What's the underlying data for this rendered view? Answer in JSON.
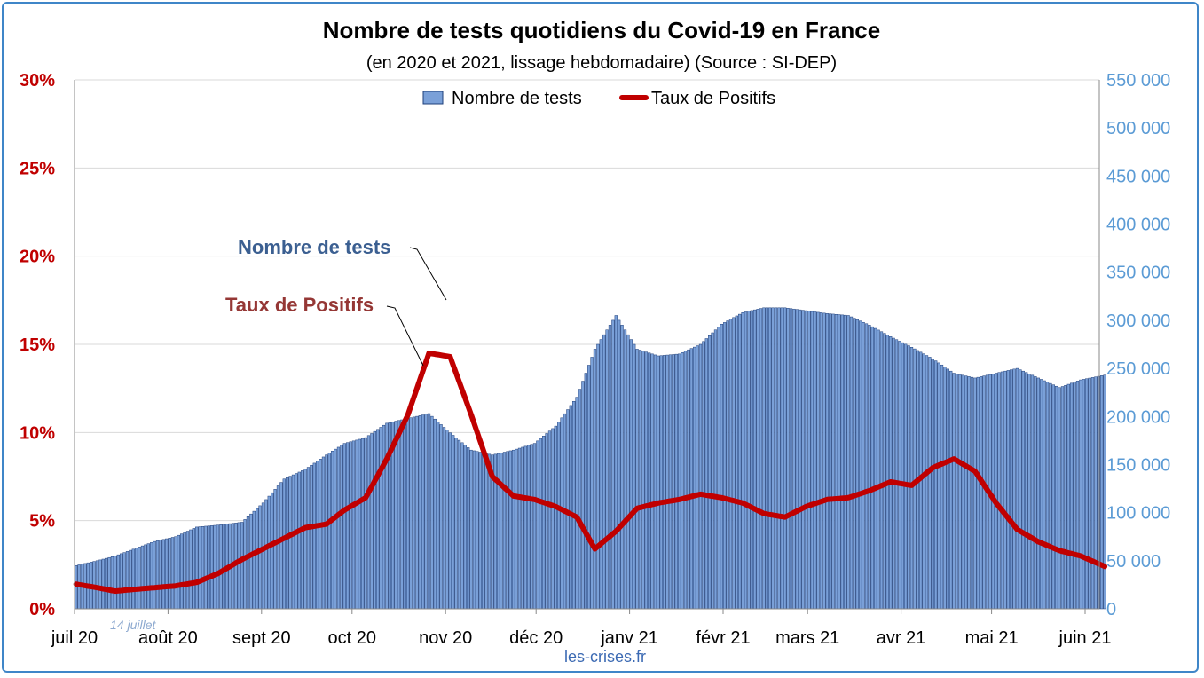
{
  "chart_data": {
    "type": "bar",
    "title": "Nombre de tests quotidiens du Covid-19 en France",
    "subtitle": "(en 2020 et 2021, lissage hebdomadaire) (Source : SI-DEP)",
    "source": "les-crises.fr",
    "annotation_date": "14 juillet",
    "legend_placement": "top-center",
    "grid": true,
    "x_tick_labels": [
      "juil 20",
      "août 20",
      "sept 20",
      "oct 20",
      "nov 20",
      "déc 20",
      "janv 21",
      "févr 21",
      "mars 21",
      "avr 21",
      "mai 21",
      "juin 21"
    ],
    "x_range": [
      "2020-07-01",
      "2021-06-07"
    ],
    "y_left": {
      "ylim": [
        0,
        30
      ],
      "tick_labels": [
        "0%",
        "5%",
        "10%",
        "15%",
        "20%",
        "25%",
        "30%"
      ],
      "color": "#c00000"
    },
    "y_right": {
      "ylim": [
        0,
        550000
      ],
      "tick_labels": [
        "0",
        "50 000",
        "100 000",
        "150 000",
        "200 000",
        "250 000",
        "300 000",
        "350 000",
        "400 000",
        "450 000",
        "500 000",
        "550 000"
      ],
      "color": "#5b9bd5"
    },
    "series": [
      {
        "name": "Nombre de tests",
        "kind": "bar",
        "axis": "right",
        "color": "#7aa0d8",
        "label": "Nombre de tests",
        "points": [
          [
            "2020-07-01",
            45000
          ],
          [
            "2020-07-08",
            50000
          ],
          [
            "2020-07-14",
            55000
          ],
          [
            "2020-07-20",
            62000
          ],
          [
            "2020-07-27",
            70000
          ],
          [
            "2020-08-03",
            75000
          ],
          [
            "2020-08-10",
            85000
          ],
          [
            "2020-08-17",
            87000
          ],
          [
            "2020-08-25",
            90000
          ],
          [
            "2020-09-01",
            110000
          ],
          [
            "2020-09-08",
            135000
          ],
          [
            "2020-09-15",
            145000
          ],
          [
            "2020-09-22",
            160000
          ],
          [
            "2020-09-28",
            172000
          ],
          [
            "2020-10-05",
            178000
          ],
          [
            "2020-10-12",
            193000
          ],
          [
            "2020-10-19",
            198000
          ],
          [
            "2020-10-26",
            203000
          ],
          [
            "2020-11-02",
            183000
          ],
          [
            "2020-11-09",
            165000
          ],
          [
            "2020-11-16",
            160000
          ],
          [
            "2020-11-23",
            165000
          ],
          [
            "2020-11-30",
            172000
          ],
          [
            "2020-12-07",
            190000
          ],
          [
            "2020-12-14",
            220000
          ],
          [
            "2020-12-20",
            270000
          ],
          [
            "2020-12-27",
            305000
          ],
          [
            "2021-01-03",
            270000
          ],
          [
            "2021-01-10",
            263000
          ],
          [
            "2021-01-17",
            265000
          ],
          [
            "2021-01-24",
            275000
          ],
          [
            "2021-01-31",
            296000
          ],
          [
            "2021-02-07",
            308000
          ],
          [
            "2021-02-14",
            313000
          ],
          [
            "2021-02-21",
            313000
          ],
          [
            "2021-02-28",
            310000
          ],
          [
            "2021-03-07",
            307000
          ],
          [
            "2021-03-14",
            305000
          ],
          [
            "2021-03-21",
            295000
          ],
          [
            "2021-03-28",
            283000
          ],
          [
            "2021-04-04",
            272000
          ],
          [
            "2021-04-11",
            260000
          ],
          [
            "2021-04-18",
            245000
          ],
          [
            "2021-04-25",
            240000
          ],
          [
            "2021-05-02",
            245000
          ],
          [
            "2021-05-09",
            250000
          ],
          [
            "2021-05-16",
            240000
          ],
          [
            "2021-05-23",
            230000
          ],
          [
            "2021-05-30",
            238000
          ],
          [
            "2021-06-07",
            243000
          ]
        ]
      },
      {
        "name": "Taux de Positifs",
        "kind": "line",
        "axis": "left",
        "color": "#c00000",
        "label": "Taux de Positifs",
        "points": [
          [
            "2020-07-01",
            1.4
          ],
          [
            "2020-07-08",
            1.2
          ],
          [
            "2020-07-14",
            1.0
          ],
          [
            "2020-07-20",
            1.1
          ],
          [
            "2020-07-27",
            1.2
          ],
          [
            "2020-08-03",
            1.3
          ],
          [
            "2020-08-10",
            1.5
          ],
          [
            "2020-08-17",
            2.0
          ],
          [
            "2020-08-25",
            2.8
          ],
          [
            "2020-09-01",
            3.4
          ],
          [
            "2020-09-08",
            4.0
          ],
          [
            "2020-09-15",
            4.6
          ],
          [
            "2020-09-22",
            4.8
          ],
          [
            "2020-09-28",
            5.6
          ],
          [
            "2020-10-05",
            6.3
          ],
          [
            "2020-10-12",
            8.5
          ],
          [
            "2020-10-19",
            11.0
          ],
          [
            "2020-10-26",
            14.5
          ],
          [
            "2020-11-02",
            14.3
          ],
          [
            "2020-11-09",
            11.0
          ],
          [
            "2020-11-16",
            7.5
          ],
          [
            "2020-11-23",
            6.4
          ],
          [
            "2020-11-30",
            6.2
          ],
          [
            "2020-12-07",
            5.8
          ],
          [
            "2020-12-14",
            5.2
          ],
          [
            "2020-12-20",
            3.4
          ],
          [
            "2020-12-27",
            4.4
          ],
          [
            "2021-01-03",
            5.7
          ],
          [
            "2021-01-10",
            6.0
          ],
          [
            "2021-01-17",
            6.2
          ],
          [
            "2021-01-24",
            6.5
          ],
          [
            "2021-01-31",
            6.3
          ],
          [
            "2021-02-07",
            6.0
          ],
          [
            "2021-02-14",
            5.4
          ],
          [
            "2021-02-21",
            5.2
          ],
          [
            "2021-02-28",
            5.8
          ],
          [
            "2021-03-07",
            6.2
          ],
          [
            "2021-03-14",
            6.3
          ],
          [
            "2021-03-21",
            6.7
          ],
          [
            "2021-03-28",
            7.2
          ],
          [
            "2021-04-04",
            7.0
          ],
          [
            "2021-04-11",
            8.0
          ],
          [
            "2021-04-18",
            8.5
          ],
          [
            "2021-04-25",
            7.8
          ],
          [
            "2021-05-02",
            6.0
          ],
          [
            "2021-05-09",
            4.5
          ],
          [
            "2021-05-16",
            3.8
          ],
          [
            "2021-05-23",
            3.3
          ],
          [
            "2021-05-30",
            3.0
          ],
          [
            "2021-06-07",
            2.4
          ]
        ]
      }
    ]
  }
}
